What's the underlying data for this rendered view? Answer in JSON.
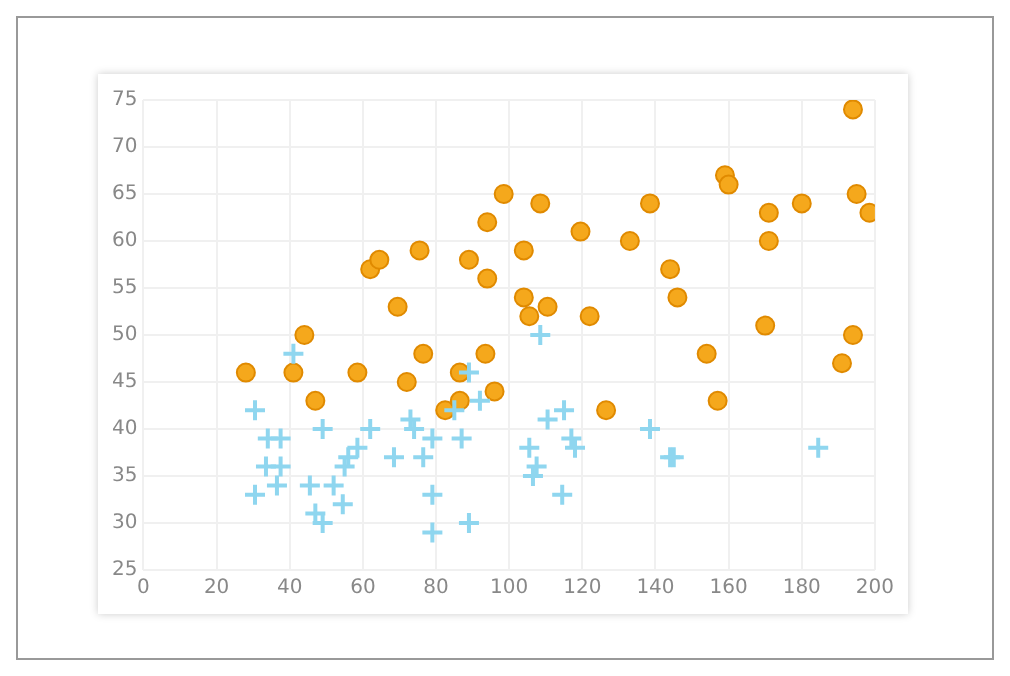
{
  "chart_data": {
    "type": "scatter",
    "xlim": [
      0,
      200
    ],
    "xticks": [
      0,
      20,
      40,
      60,
      80,
      100,
      120,
      140,
      160,
      180,
      200
    ],
    "ylim": [
      25,
      75
    ],
    "yticks": [
      25,
      30,
      35,
      40,
      45,
      50,
      55,
      60,
      65,
      70,
      75
    ],
    "grid": true,
    "legend": false,
    "series": [
      {
        "color": "#f5a81c",
        "marker": "circle",
        "x": [
          28,
          44,
          41,
          47,
          58.5,
          62,
          64.5,
          69.5,
          72,
          75.5,
          76.5,
          82.5,
          86.5,
          86.5,
          89,
          94,
          94,
          93.5,
          96,
          98.5,
          108.5,
          104,
          104,
          105.5,
          110.5,
          119.5,
          122,
          126.5,
          133,
          138.5,
          144,
          146,
          154,
          157,
          159,
          160,
          170,
          171,
          171,
          180,
          191,
          194,
          194,
          195,
          198.5
        ],
        "values": [
          46,
          50,
          46,
          43,
          46,
          57,
          58,
          53,
          45,
          59,
          48,
          42,
          43,
          46,
          58,
          62,
          56,
          48,
          44,
          65,
          64,
          59,
          54,
          52,
          53,
          61,
          52,
          42,
          60,
          64,
          57,
          54,
          48,
          43,
          67,
          66,
          51,
          60,
          63,
          64,
          47,
          50,
          74,
          65,
          63
        ]
      },
      {
        "color": "#8fd6ef",
        "marker": "cross",
        "x": [
          30.5,
          30.5,
          34,
          37.5,
          33.5,
          37.5,
          36.5,
          41,
          45.5,
          47,
          49,
          49,
          52,
          54.5,
          55,
          56,
          58.5,
          62,
          68.5,
          73,
          74,
          76.5,
          79,
          79,
          79,
          85,
          87,
          89,
          89,
          92,
          108.5,
          105.5,
          107.5,
          106.5,
          110.5,
          115,
          114.5,
          117,
          118,
          138.5,
          144,
          145,
          184.5
        ],
        "values": [
          42,
          33,
          39,
          39,
          36,
          36,
          34,
          48,
          34,
          31,
          30,
          40,
          34,
          32,
          36,
          37,
          38,
          40,
          37,
          41,
          40,
          37,
          39,
          33,
          29,
          42,
          39,
          46,
          30,
          43,
          50,
          38,
          36,
          35,
          41,
          42,
          33,
          39,
          38,
          40,
          37,
          37,
          38
        ]
      }
    ]
  }
}
